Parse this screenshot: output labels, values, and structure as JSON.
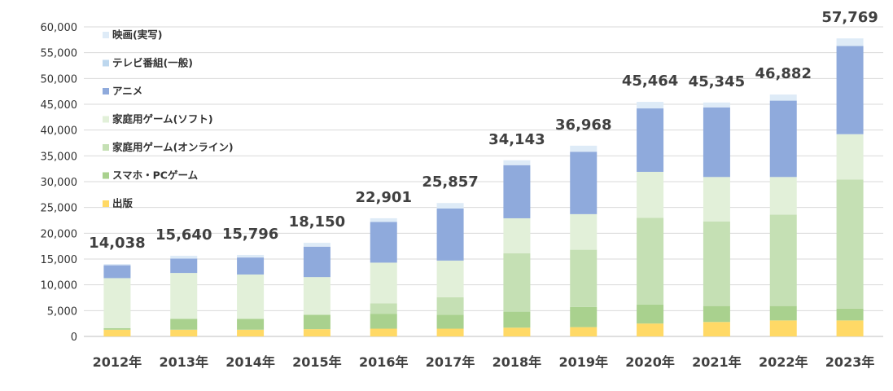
{
  "chart_data": {
    "type": "bar",
    "stacked": true,
    "categories": [
      "2012年",
      "2013年",
      "2014年",
      "2015年",
      "2016年",
      "2017年",
      "2018年",
      "2019年",
      "2020年",
      "2021年",
      "2022年",
      "2023年"
    ],
    "ylim": [
      0,
      60000
    ],
    "yticks": [
      "0",
      "5,000",
      "10,000",
      "15,000",
      "20,000",
      "25,000",
      "30,000",
      "35,000",
      "40,000",
      "45,000",
      "50,000",
      "55,000",
      "60,000"
    ],
    "ytick_values": [
      0,
      5000,
      10000,
      15000,
      20000,
      25000,
      30000,
      35000,
      40000,
      45000,
      50000,
      55000,
      60000
    ],
    "grid": true,
    "legend_position": "top-left",
    "totals": [
      "14,038",
      "15,640",
      "15,796",
      "18,150",
      "22,901",
      "25,857",
      "34,143",
      "36,968",
      "45,464",
      "45,345",
      "46,882",
      "57,769"
    ],
    "series": [
      {
        "name": "出版",
        "color": "#ffd966",
        "values": [
          1300,
          1300,
          1300,
          1400,
          1500,
          1500,
          1700,
          1800,
          2500,
          2800,
          3100,
          3100
        ]
      },
      {
        "name": "スマホ・PCゲーム",
        "color": "#a9d18e",
        "values": [
          300,
          2100,
          2100,
          2800,
          2900,
          2700,
          3100,
          3900,
          3700,
          3100,
          2800,
          2300
        ]
      },
      {
        "name": "家庭用ゲーム(オンライン)",
        "color": "#c5e0b4",
        "values": [
          0,
          0,
          0,
          0,
          2000,
          3400,
          11300,
          11100,
          16800,
          16400,
          17700,
          25000
        ]
      },
      {
        "name": "家庭用ゲーム(ソフト)",
        "color": "#e2f0d9",
        "values": [
          9700,
          8900,
          8600,
          7300,
          7900,
          7100,
          6800,
          6900,
          8900,
          8600,
          7300,
          8800
        ]
      },
      {
        "name": "アニメ",
        "color": "#8faadc",
        "values": [
          2500,
          2800,
          3300,
          5900,
          7900,
          10100,
          10300,
          12100,
          12300,
          13500,
          14800,
          17100
        ]
      },
      {
        "name": "テレビ番組(一般)",
        "color": "#bdd7ee",
        "values": [
          0,
          0,
          0,
          0,
          0,
          0,
          0,
          0,
          0,
          0,
          0,
          0
        ]
      },
      {
        "name": "映画(実写)",
        "color": "#deebf7",
        "values": [
          238,
          540,
          496,
          750,
          701,
          1057,
          943,
          1168,
          1264,
          945,
          1182,
          1469
        ]
      }
    ]
  }
}
